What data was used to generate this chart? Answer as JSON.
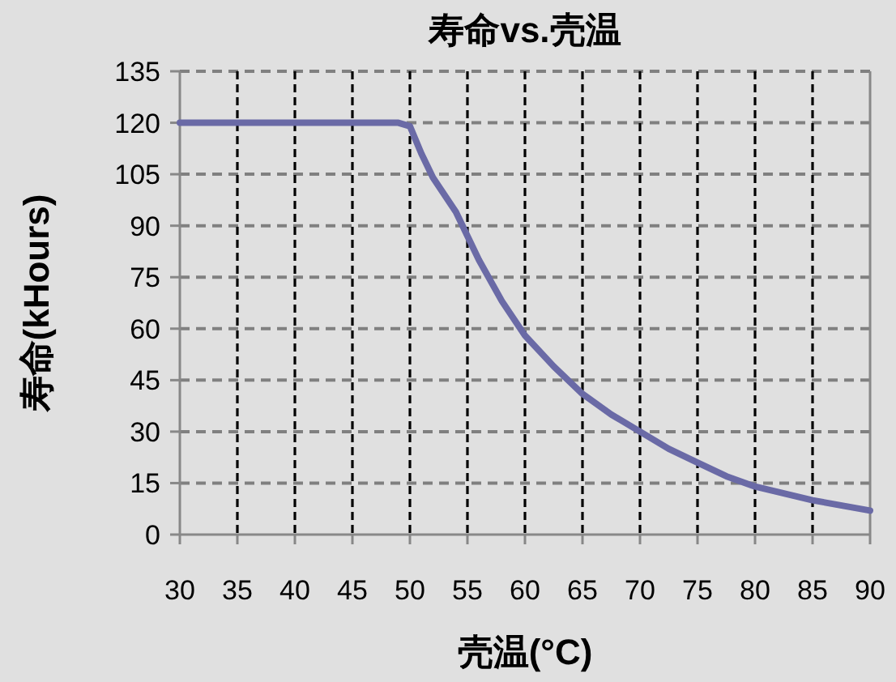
{
  "chart_data": {
    "type": "line",
    "title": "寿命vs.壳温",
    "xlabel": "壳温(°C)",
    "ylabel": "寿命(kHours)",
    "series": [
      {
        "color": "#6a6aa6",
        "x": [
          30,
          40,
          49,
          50,
          51,
          52,
          54,
          56,
          58,
          60,
          62.5,
          65,
          67.5,
          70,
          72.5,
          75,
          77.5,
          80,
          85,
          90
        ],
        "values": [
          120,
          120,
          120,
          119,
          111,
          104,
          94,
          80,
          68,
          58,
          49,
          41,
          35,
          30,
          25,
          21,
          17,
          14,
          10,
          7
        ]
      }
    ],
    "xlim": [
      30,
      90
    ],
    "xticks": [
      30,
      35,
      40,
      45,
      50,
      55,
      60,
      65,
      70,
      75,
      80,
      85,
      90
    ],
    "ylim": [
      0,
      135
    ],
    "yticks": [
      0,
      15,
      30,
      45,
      60,
      75,
      90,
      105,
      120,
      135
    ],
    "grid": true,
    "marker": "none",
    "line_style": "solid"
  }
}
